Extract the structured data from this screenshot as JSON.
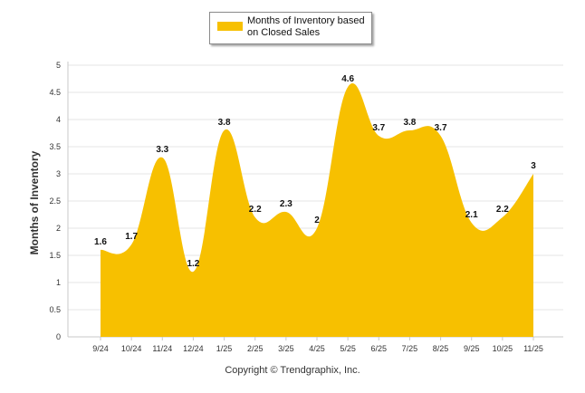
{
  "legend": {
    "label": "Months of Inventory based on Closed Sales",
    "color": "#F7C000"
  },
  "copyright": "Copyright © Trendgraphix, Inc.",
  "chart_data": {
    "type": "area",
    "title": "",
    "xlabel": "",
    "ylabel": "Months of Inventory",
    "ylim": [
      0,
      5
    ],
    "yticks": [
      "0",
      "0.5",
      "1",
      "1.5",
      "2",
      "2.5",
      "3",
      "3.5",
      "4",
      "4.5",
      "5"
    ],
    "grid": true,
    "legend_position": "top-center",
    "categories": [
      "9/24",
      "10/24",
      "11/24",
      "12/24",
      "1/25",
      "2/25",
      "3/25",
      "4/25",
      "5/25",
      "6/25",
      "7/25",
      "8/25",
      "9/25",
      "10/25",
      "11/25"
    ],
    "series": [
      {
        "name": "Months of Inventory based on Closed Sales",
        "color": "#F7C000",
        "values": [
          1.6,
          1.7,
          3.3,
          1.2,
          3.8,
          2.2,
          2.3,
          2.0,
          4.6,
          3.7,
          3.8,
          3.7,
          2.1,
          2.2,
          3.0
        ],
        "labels": [
          "1.6",
          "1.7",
          "3.3",
          "1.2",
          "3.8",
          "2.2",
          "2.3",
          "2",
          "4.6",
          "3.7",
          "3.8",
          "3.7",
          "2.1",
          "2.2",
          "3"
        ]
      }
    ]
  }
}
